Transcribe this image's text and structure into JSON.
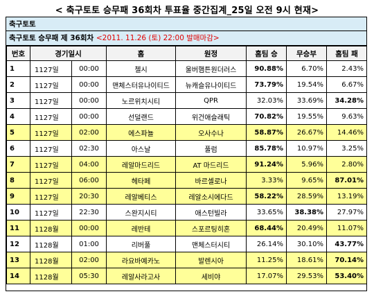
{
  "page_title": "< 축구토토 승무패 36회차 투표율 중간집계_25일 오전 9시 현재>",
  "section_label": "축구토토",
  "subtitle": {
    "main": "축구토토 승무패 제 36회차 ",
    "deadline": "<2011. 11.26 (토) 22:00 발매마감>"
  },
  "columns": [
    "번호",
    "경기일시",
    "",
    "홈",
    "원정",
    "홈팀 승",
    "무승부",
    "홈팀 패"
  ],
  "colors": {
    "header_bar": "#d8ecf6",
    "highlight_row": "#ffff99",
    "deadline_text": "#e00000"
  },
  "rows": [
    {
      "no": "1",
      "date": "1127일",
      "time": "00:00",
      "home": "첼시",
      "away": "울버햄튼원더러스",
      "win": "90.88%",
      "draw": "6.70%",
      "lose": "2.43%",
      "bold": "win",
      "highlight": false
    },
    {
      "no": "2",
      "date": "1127일",
      "time": "00:00",
      "home": "맨체스터유나이티드",
      "away": "뉴캐슬유나이티드",
      "win": "73.79%",
      "draw": "19.54%",
      "lose": "6.67%",
      "bold": "win",
      "highlight": false
    },
    {
      "no": "3",
      "date": "1127일",
      "time": "00:00",
      "home": "노르위치시티",
      "away": "QPR",
      "win": "32.03%",
      "draw": "33.69%",
      "lose": "34.28%",
      "bold": "lose",
      "highlight": false
    },
    {
      "no": "4",
      "date": "1127일",
      "time": "00:00",
      "home": "선덜랜드",
      "away": "위건애슬래틱",
      "win": "70.82%",
      "draw": "19.55%",
      "lose": "9.63%",
      "bold": "win",
      "highlight": false
    },
    {
      "no": "5",
      "date": "1127일",
      "time": "02:00",
      "home": "에스파뇰",
      "away": "오사수나",
      "win": "58.87%",
      "draw": "26.67%",
      "lose": "14.46%",
      "bold": "win",
      "highlight": true
    },
    {
      "no": "6",
      "date": "1127일",
      "time": "02:30",
      "home": "아스날",
      "away": "풀럼",
      "win": "85.78%",
      "draw": "10.97%",
      "lose": "3.25%",
      "bold": "win",
      "highlight": false
    },
    {
      "no": "7",
      "date": "1127일",
      "time": "04:00",
      "home": "레알마드리드",
      "away": "AT 마드리드",
      "win": "91.24%",
      "draw": "5.96%",
      "lose": "2.80%",
      "bold": "win",
      "highlight": true
    },
    {
      "no": "8",
      "date": "1127일",
      "time": "06:00",
      "home": "헤타페",
      "away": "바르셀로나",
      "win": "3.33%",
      "draw": "9.65%",
      "lose": "87.01%",
      "bold": "lose",
      "highlight": true
    },
    {
      "no": "9",
      "date": "1127일",
      "time": "20:30",
      "home": "레알베티스",
      "away": "레알소시에다드",
      "win": "58.22%",
      "draw": "28.59%",
      "lose": "13.19%",
      "bold": "win",
      "highlight": true
    },
    {
      "no": "10",
      "date": "1127일",
      "time": "22:30",
      "home": "스완지시티",
      "away": "애스턴빌라",
      "win": "33.65%",
      "draw": "38.38%",
      "lose": "27.97%",
      "bold": "draw",
      "highlight": false
    },
    {
      "no": "11",
      "date": "1128월",
      "time": "00:00",
      "home": "레반테",
      "away": "스포르팅히혼",
      "win": "68.44%",
      "draw": "20.49%",
      "lose": "11.07%",
      "bold": "win",
      "highlight": true
    },
    {
      "no": "12",
      "date": "1128월",
      "time": "01:00",
      "home": "리버풀",
      "away": "맨체스터시티",
      "win": "26.14%",
      "draw": "30.10%",
      "lose": "43.77%",
      "bold": "lose",
      "highlight": false
    },
    {
      "no": "13",
      "date": "1128월",
      "time": "02:00",
      "home": "라요바예카노",
      "away": "발렌시아",
      "win": "11.25%",
      "draw": "18.61%",
      "lose": "70.14%",
      "bold": "lose",
      "highlight": true
    },
    {
      "no": "14",
      "date": "1128월",
      "time": "05:30",
      "home": "레알사라고사",
      "away": "세비야",
      "win": "17.07%",
      "draw": "29.53%",
      "lose": "53.40%",
      "bold": "lose",
      "highlight": true
    }
  ]
}
